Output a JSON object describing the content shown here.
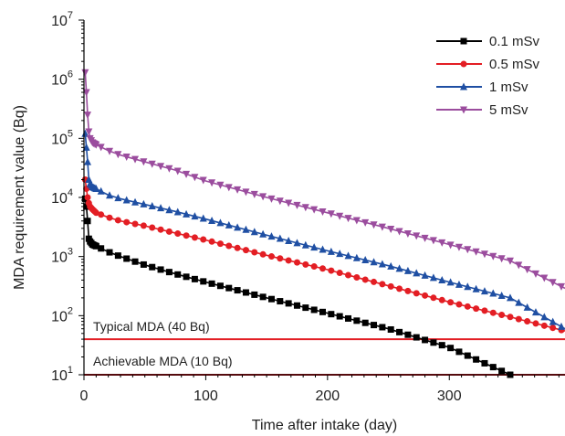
{
  "chart_data": {
    "type": "line",
    "xlabel": "Time after intake (day)",
    "ylabel": "MDA requirement value (Bq)",
    "xlim": [
      0,
      395
    ],
    "ylim": [
      10,
      10000000
    ],
    "y_scale": "log",
    "x_ticks": [
      0,
      100,
      200,
      300
    ],
    "x_tick_labels": [
      "0",
      "100",
      "200",
      "300"
    ],
    "y_ticks": [
      10,
      100,
      1000,
      10000,
      100000,
      1000000,
      10000000
    ],
    "y_tick_base": "10",
    "y_tick_exponents": [
      "1",
      "2",
      "3",
      "4",
      "5",
      "6",
      "7"
    ],
    "grid": false,
    "legend_position": "top-right",
    "series": [
      {
        "name": "0.1 mSv",
        "color": "#000000",
        "marker": "square",
        "x": [
          1,
          2,
          3,
          4,
          5,
          7,
          10,
          20,
          30,
          50,
          75,
          100,
          150,
          200,
          250,
          300,
          350
        ],
        "y": [
          9500,
          7000,
          4000,
          2000,
          1800,
          1600,
          1500,
          1200,
          1000,
          720,
          510,
          370,
          200,
          110,
          60,
          29,
          10
        ]
      },
      {
        "name": "0.5 mSv",
        "color": "#e31e24",
        "marker": "circle",
        "x": [
          1,
          2,
          3,
          4,
          5,
          7,
          10,
          20,
          30,
          50,
          75,
          100,
          150,
          200,
          250,
          300,
          350,
          395
        ],
        "y": [
          20000,
          14000,
          10000,
          8000,
          7000,
          6300,
          5500,
          4600,
          4000,
          3300,
          2500,
          1900,
          1050,
          600,
          320,
          170,
          95,
          55
        ]
      },
      {
        "name": "1 mSv",
        "color": "#1f4fa3",
        "marker": "triangle-up",
        "x": [
          1,
          2,
          3,
          4,
          5,
          7,
          10,
          20,
          30,
          50,
          75,
          100,
          150,
          200,
          250,
          300,
          350,
          395
        ],
        "y": [
          120000,
          70000,
          40000,
          20000,
          17000,
          15000,
          14000,
          11000,
          9500,
          7600,
          5800,
          4300,
          2300,
          1250,
          700,
          370,
          200,
          60
        ]
      },
      {
        "name": "5 mSv",
        "color": "#9b4d9e",
        "marker": "triangle-down",
        "x": [
          1,
          2,
          3,
          4,
          5,
          7,
          10,
          20,
          30,
          50,
          75,
          100,
          150,
          200,
          250,
          300,
          350,
          395
        ],
        "y": [
          1300000,
          600000,
          250000,
          130000,
          100000,
          85000,
          78000,
          62000,
          52000,
          40000,
          29000,
          19000,
          10000,
          5500,
          3000,
          1600,
          850,
          290
        ]
      }
    ],
    "reference_lines": [
      {
        "label": "Typical MDA (40 Bq)",
        "y": 40,
        "color": "#e31e24"
      },
      {
        "label": "Achievable MDA (10 Bq)",
        "y": 10,
        "color": "#e31e24"
      }
    ]
  }
}
